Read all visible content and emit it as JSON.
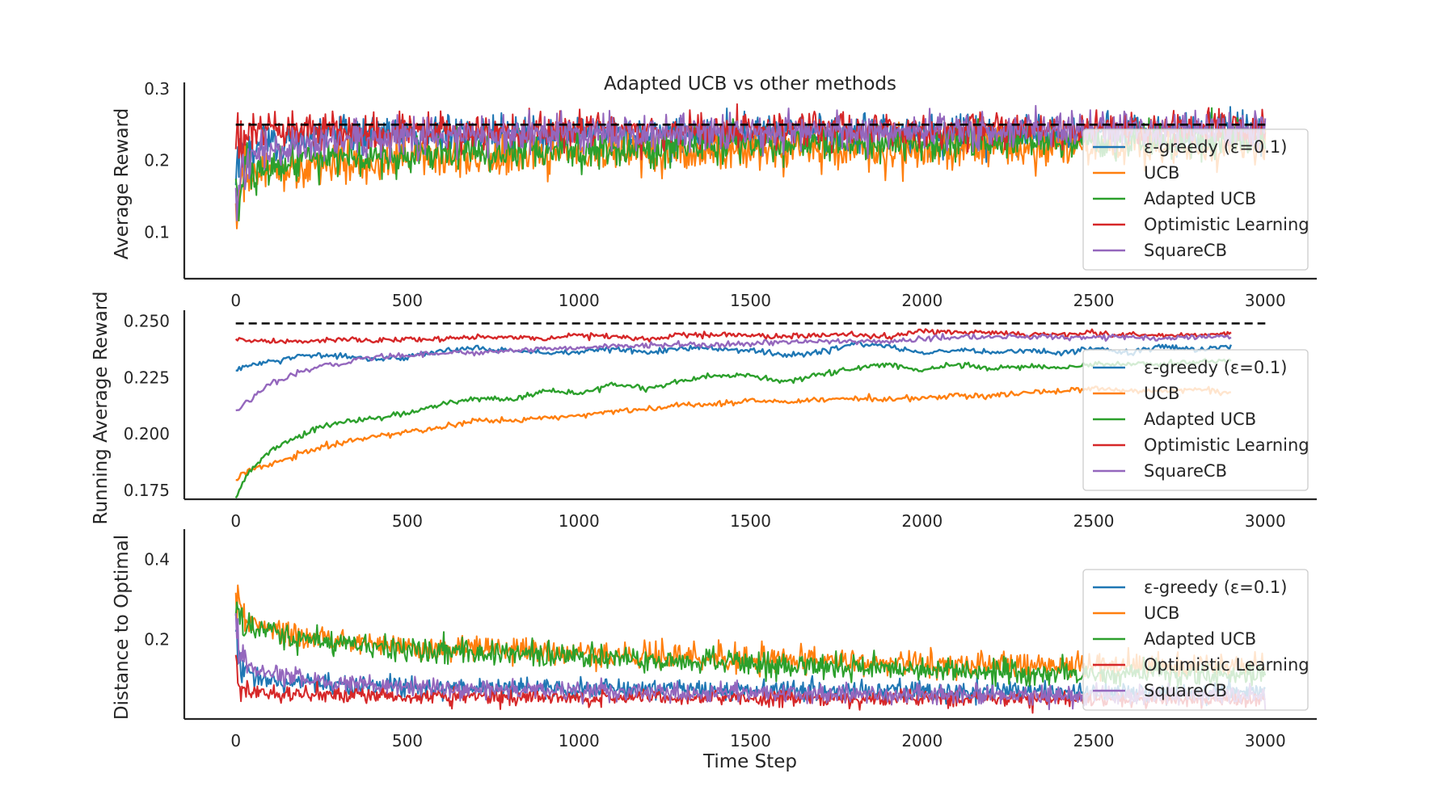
{
  "title": "Adapted UCB vs other methods",
  "xlabel": "Time Step",
  "colors": {
    "epsilon_greedy": "#1f77b4",
    "ucb": "#ff7f0e",
    "adapted_ucb": "#2ca02c",
    "optimistic": "#d62728",
    "squarecb": "#9467bd",
    "reference": "#000000"
  },
  "legend_labels": [
    "ε-greedy (ε=0.1)",
    "UCB",
    "Adapted UCB",
    "Optimistic Learning",
    "SquareCB"
  ],
  "chart_data": [
    {
      "type": "line",
      "ylabel": "Average Reward",
      "xlim": [
        -150,
        3150
      ],
      "ylim": [
        0.035,
        0.3
      ],
      "xticks": [
        0,
        500,
        1000,
        1500,
        2000,
        2500,
        3000
      ],
      "xtick_labels": [
        "0",
        "500",
        "1000",
        "1500",
        "2000",
        "2500",
        "3000"
      ],
      "yticks": [
        0.1,
        0.2,
        0.3
      ],
      "ytick_labels": [
        "0.1",
        "0.2",
        "0.3"
      ],
      "reference_line": 0.25,
      "legend_position": "lower-right",
      "grid": false,
      "noisy": true,
      "series": [
        {
          "name": "ε-greedy (ε=0.1)",
          "color_key": "epsilon_greedy",
          "x": [
            0,
            20,
            50,
            100,
            200,
            300,
            500,
            1000,
            1500,
            2000,
            2500,
            3000
          ],
          "y": [
            0.18,
            0.205,
            0.218,
            0.225,
            0.232,
            0.236,
            0.238,
            0.238,
            0.238,
            0.238,
            0.238,
            0.238
          ],
          "noise": 0.013
        },
        {
          "name": "UCB",
          "color_key": "ucb",
          "x": [
            0,
            20,
            50,
            100,
            200,
            300,
            500,
            750,
            1000,
            1500,
            2000,
            2500,
            3000
          ],
          "y": [
            0.15,
            0.17,
            0.178,
            0.185,
            0.192,
            0.196,
            0.201,
            0.206,
            0.208,
            0.213,
            0.215,
            0.218,
            0.219
          ],
          "noise": 0.014
        },
        {
          "name": "Adapted UCB",
          "color_key": "adapted_ucb",
          "x": [
            0,
            20,
            50,
            100,
            200,
            300,
            500,
            750,
            1000,
            1500,
            2000,
            2500,
            3000
          ],
          "y": [
            0.15,
            0.175,
            0.183,
            0.19,
            0.198,
            0.203,
            0.208,
            0.214,
            0.217,
            0.223,
            0.226,
            0.229,
            0.23
          ],
          "noise": 0.013
        },
        {
          "name": "Optimistic Learning",
          "color_key": "optimistic",
          "x": [
            0,
            20,
            100,
            500,
            1000,
            1500,
            2000,
            2500,
            3000
          ],
          "y": [
            0.235,
            0.24,
            0.242,
            0.242,
            0.242,
            0.243,
            0.243,
            0.244,
            0.244
          ],
          "noise": 0.012
        },
        {
          "name": "SquareCB",
          "color_key": "squarecb",
          "x": [
            0,
            20,
            50,
            100,
            200,
            300,
            500,
            1000,
            1500,
            2000,
            2500,
            3000
          ],
          "y": [
            0.16,
            0.195,
            0.207,
            0.215,
            0.222,
            0.227,
            0.232,
            0.238,
            0.24,
            0.241,
            0.242,
            0.242
          ],
          "noise": 0.013
        }
      ]
    },
    {
      "type": "line",
      "ylabel": "Running Average Reward",
      "xlim": [
        -150,
        3150
      ],
      "ylim": [
        0.171,
        0.252
      ],
      "xticks": [
        0,
        500,
        1000,
        1500,
        2000,
        2500,
        3000
      ],
      "xtick_labels": [
        "0",
        "500",
        "1000",
        "1500",
        "2000",
        "2500",
        "3000"
      ],
      "yticks": [
        0.175,
        0.2,
        0.225,
        0.25
      ],
      "ytick_labels": [
        "0.175",
        "0.200",
        "0.225",
        "0.250"
      ],
      "reference_line": 0.249,
      "legend_position": "lower-right",
      "grid": false,
      "noisy": false,
      "series": [
        {
          "name": "ε-greedy (ε=0.1)",
          "color_key": "epsilon_greedy",
          "x": [
            0,
            50,
            100,
            200,
            300,
            400,
            500,
            600,
            700,
            800,
            900,
            1000,
            1100,
            1200,
            1300,
            1400,
            1500,
            1600,
            1700,
            1800,
            1900,
            2000,
            2100,
            2200,
            2300,
            2400,
            2500,
            2600,
            2700,
            2800,
            2900
          ],
          "y": [
            0.228,
            0.231,
            0.232,
            0.235,
            0.235,
            0.233,
            0.234,
            0.237,
            0.238,
            0.237,
            0.236,
            0.236,
            0.238,
            0.236,
            0.238,
            0.238,
            0.237,
            0.235,
            0.236,
            0.24,
            0.239,
            0.236,
            0.237,
            0.236,
            0.237,
            0.236,
            0.238,
            0.236,
            0.239,
            0.237,
            0.239
          ]
        },
        {
          "name": "UCB",
          "color_key": "ucb",
          "x": [
            0,
            30,
            60,
            100,
            150,
            200,
            250,
            300,
            350,
            400,
            500,
            600,
            700,
            800,
            900,
            1000,
            1100,
            1200,
            1300,
            1400,
            1500,
            1600,
            1700,
            1800,
            1900,
            2000,
            2100,
            2200,
            2300,
            2400,
            2500,
            2600,
            2700,
            2800,
            2900
          ],
          "y": [
            0.18,
            0.183,
            0.185,
            0.186,
            0.189,
            0.192,
            0.194,
            0.196,
            0.197,
            0.199,
            0.201,
            0.203,
            0.206,
            0.206,
            0.207,
            0.208,
            0.21,
            0.211,
            0.213,
            0.213,
            0.215,
            0.214,
            0.215,
            0.216,
            0.215,
            0.216,
            0.217,
            0.217,
            0.218,
            0.219,
            0.22,
            0.219,
            0.219,
            0.22,
            0.218
          ]
        },
        {
          "name": "Adapted UCB",
          "color_key": "adapted_ucb",
          "x": [
            0,
            30,
            60,
            100,
            150,
            200,
            250,
            300,
            350,
            400,
            500,
            600,
            700,
            800,
            900,
            1000,
            1100,
            1200,
            1300,
            1400,
            1500,
            1600,
            1700,
            1800,
            1900,
            2000,
            2100,
            2200,
            2300,
            2400,
            2500,
            2600,
            2700,
            2800,
            2900
          ],
          "y": [
            0.172,
            0.181,
            0.187,
            0.192,
            0.197,
            0.2,
            0.203,
            0.205,
            0.206,
            0.207,
            0.209,
            0.213,
            0.216,
            0.215,
            0.219,
            0.218,
            0.222,
            0.22,
            0.224,
            0.226,
            0.226,
            0.223,
            0.226,
            0.229,
            0.231,
            0.228,
            0.231,
            0.229,
            0.23,
            0.229,
            0.231,
            0.231,
            0.231,
            0.232,
            0.232
          ]
        },
        {
          "name": "Optimistic Learning",
          "color_key": "optimistic",
          "x": [
            0,
            100,
            200,
            300,
            400,
            500,
            600,
            700,
            800,
            900,
            1000,
            1100,
            1200,
            1300,
            1400,
            1500,
            1600,
            1700,
            1800,
            1900,
            2000,
            2100,
            2200,
            2300,
            2400,
            2500,
            2600,
            2700,
            2800,
            2900
          ],
          "y": [
            0.242,
            0.241,
            0.241,
            0.242,
            0.241,
            0.242,
            0.242,
            0.243,
            0.243,
            0.242,
            0.244,
            0.243,
            0.242,
            0.244,
            0.244,
            0.244,
            0.243,
            0.244,
            0.244,
            0.243,
            0.246,
            0.245,
            0.245,
            0.244,
            0.244,
            0.245,
            0.244,
            0.244,
            0.244,
            0.245
          ]
        },
        {
          "name": "SquareCB",
          "color_key": "squarecb",
          "x": [
            0,
            30,
            60,
            100,
            150,
            200,
            250,
            300,
            350,
            400,
            500,
            600,
            700,
            800,
            900,
            1000,
            1100,
            1200,
            1300,
            1400,
            1500,
            1600,
            1700,
            1800,
            1900,
            2000,
            2100,
            2200,
            2300,
            2400,
            2500,
            2600,
            2700,
            2800,
            2900
          ],
          "y": [
            0.21,
            0.214,
            0.217,
            0.222,
            0.225,
            0.228,
            0.23,
            0.231,
            0.233,
            0.234,
            0.235,
            0.236,
            0.236,
            0.237,
            0.238,
            0.238,
            0.239,
            0.239,
            0.24,
            0.239,
            0.24,
            0.241,
            0.241,
            0.241,
            0.241,
            0.242,
            0.243,
            0.243,
            0.243,
            0.243,
            0.243,
            0.243,
            0.242,
            0.243,
            0.243
          ]
        }
      ]
    },
    {
      "type": "line",
      "ylabel": "Distance to Optimal",
      "xlim": [
        -150,
        3150
      ],
      "ylim": [
        0.0,
        0.46
      ],
      "xticks": [
        0,
        500,
        1000,
        1500,
        2000,
        2500,
        3000
      ],
      "xtick_labels": [
        "0",
        "500",
        "1000",
        "1500",
        "2000",
        "2500",
        "3000"
      ],
      "yticks": [
        0.2,
        0.4
      ],
      "ytick_labels": [
        "0.2",
        "0.4"
      ],
      "legend_position": "lower-right",
      "grid": false,
      "noisy": true,
      "series": [
        {
          "name": "ε-greedy (ε=0.1)",
          "color_key": "epsilon_greedy",
          "x": [
            0,
            10,
            20,
            50,
            100,
            200,
            300,
            500,
            1000,
            1500,
            2000,
            2500,
            3000
          ],
          "y": [
            0.22,
            0.13,
            0.12,
            0.11,
            0.1,
            0.09,
            0.085,
            0.08,
            0.075,
            0.072,
            0.07,
            0.068,
            0.068
          ],
          "noise": 0.012
        },
        {
          "name": "UCB",
          "color_key": "ucb",
          "x": [
            0,
            10,
            20,
            50,
            100,
            200,
            300,
            500,
            1000,
            1500,
            2000,
            2500,
            3000
          ],
          "y": [
            0.28,
            0.27,
            0.26,
            0.24,
            0.225,
            0.205,
            0.195,
            0.182,
            0.165,
            0.15,
            0.14,
            0.135,
            0.13
          ],
          "noise": 0.016
        },
        {
          "name": "Adapted UCB",
          "color_key": "adapted_ucb",
          "x": [
            0,
            10,
            20,
            50,
            100,
            200,
            300,
            500,
            1000,
            1500,
            2000,
            2500,
            3000
          ],
          "y": [
            0.3,
            0.26,
            0.25,
            0.235,
            0.22,
            0.2,
            0.19,
            0.175,
            0.155,
            0.14,
            0.125,
            0.115,
            0.11
          ],
          "noise": 0.015
        },
        {
          "name": "Optimistic Learning",
          "color_key": "optimistic",
          "x": [
            0,
            10,
            20,
            50,
            100,
            200,
            300,
            500,
            1000,
            1500,
            2000,
            2500,
            3000
          ],
          "y": [
            0.15,
            0.09,
            0.075,
            0.068,
            0.065,
            0.062,
            0.06,
            0.058,
            0.055,
            0.052,
            0.05,
            0.05,
            0.048
          ],
          "noise": 0.01
        },
        {
          "name": "SquareCB",
          "color_key": "squarecb",
          "x": [
            0,
            10,
            20,
            50,
            100,
            200,
            300,
            500,
            1000,
            1500,
            2000,
            2500,
            3000
          ],
          "y": [
            0.25,
            0.17,
            0.15,
            0.13,
            0.115,
            0.1,
            0.09,
            0.08,
            0.07,
            0.065,
            0.062,
            0.06,
            0.06
          ],
          "noise": 0.012
        }
      ]
    }
  ]
}
